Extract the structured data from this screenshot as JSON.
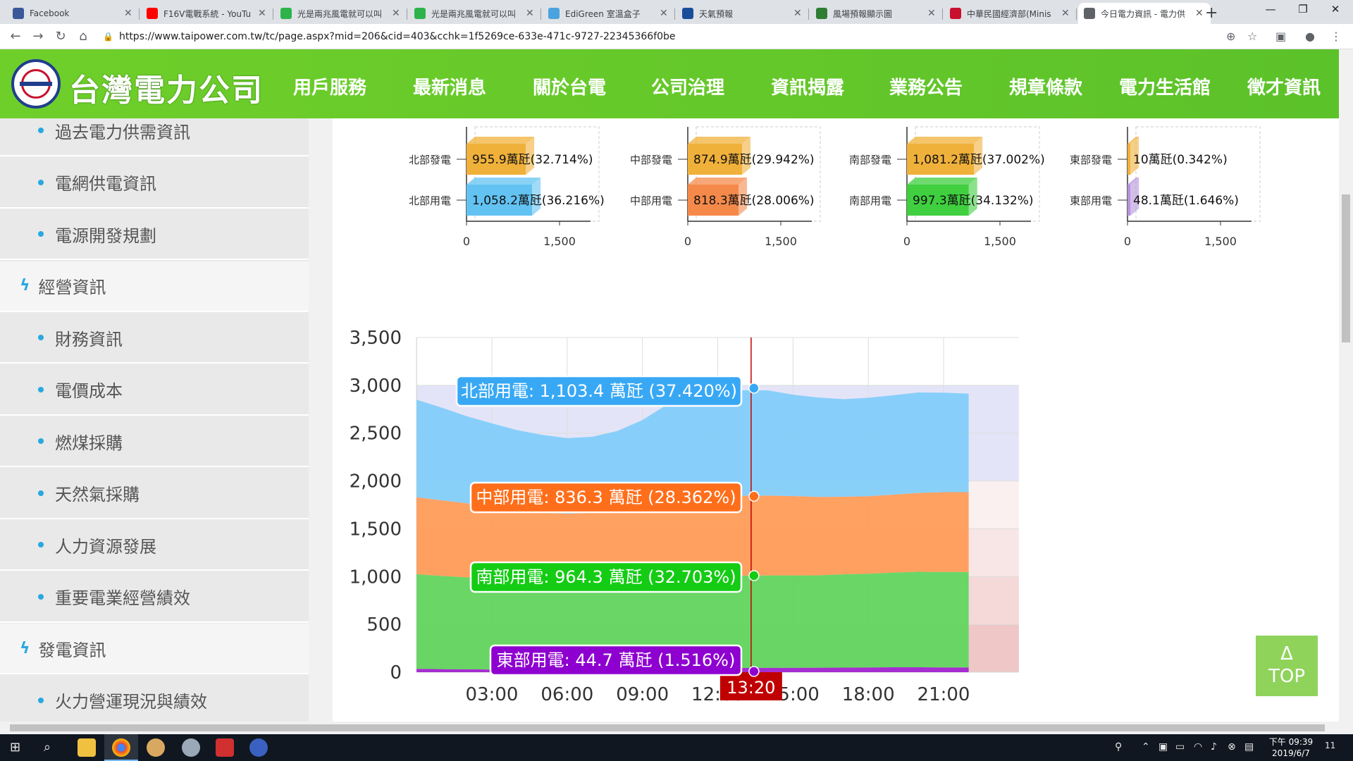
{
  "browser": {
    "tabs": [
      {
        "title": "Facebook",
        "color": "#3b5998"
      },
      {
        "title": "F16V電戰系統 - YouTu",
        "color": "#ff0000"
      },
      {
        "title": "光是兩兆風電就可以叫",
        "color": "#2db34a"
      },
      {
        "title": "光是兩兆風電就可以叫",
        "color": "#2db34a"
      },
      {
        "title": "EdiGreen 室溫盒子",
        "color": "#4aa3df"
      },
      {
        "title": "天氣預報",
        "color": "#1a4e9a"
      },
      {
        "title": "風場預報顯示圖",
        "color": "#2e7d32"
      },
      {
        "title": "中華民國經濟部(Minis",
        "color": "#c8102e"
      },
      {
        "title": "今日電力資訊 - 電力供",
        "color": "#5f6368"
      }
    ],
    "url": "https://www.taipower.com.tw/tc/page.aspx?mid=206&cid=403&cchk=1f5269ce-633e-471c-9727-22345366f0be"
  },
  "site": {
    "brand": "台灣電力公司",
    "nav": [
      "用戶服務",
      "最新消息",
      "關於台電",
      "公司治理",
      "資訊揭露",
      "業務公告",
      "規章條款",
      "電力生活館",
      "徵才資訊"
    ],
    "active_nav": "資訊揭露",
    "header_color": "#5cc22a"
  },
  "sidebar": {
    "items": [
      {
        "label": "過去電力供需資訊",
        "type": "sub"
      },
      {
        "label": "電網供電資訊",
        "type": "sub"
      },
      {
        "label": "電源開發規劃",
        "type": "sub"
      },
      {
        "label": "經營資訊",
        "type": "cat"
      },
      {
        "label": "財務資訊",
        "type": "sub"
      },
      {
        "label": "電價成本",
        "type": "sub"
      },
      {
        "label": "燃煤採購",
        "type": "sub"
      },
      {
        "label": "天然氣採購",
        "type": "sub"
      },
      {
        "label": "人力資源發展",
        "type": "sub"
      },
      {
        "label": "重要電業經營績效",
        "type": "sub"
      },
      {
        "label": "發電資訊",
        "type": "cat"
      },
      {
        "label": "火力營運現況與績效",
        "type": "sub"
      }
    ]
  },
  "chart_data": [
    {
      "type": "bar",
      "orientation": "horizontal",
      "groups": [
        {
          "rows": [
            {
              "label": "北部發電",
              "value": 955.9,
              "unit": "萬瓩",
              "pct": "32.714%",
              "color": "#f0b13a"
            },
            {
              "label": "北部用電",
              "value": 1058.2,
              "unit": "萬瓩",
              "pct": "36.216%",
              "color": "#62c3f2"
            }
          ]
        },
        {
          "rows": [
            {
              "label": "中部發電",
              "value": 874.9,
              "unit": "萬瓩",
              "pct": "29.942%",
              "color": "#f0b13a"
            },
            {
              "label": "中部用電",
              "value": 818.3,
              "unit": "萬瓩",
              "pct": "28.006%",
              "color": "#f5894a"
            }
          ]
        },
        {
          "rows": [
            {
              "label": "南部發電",
              "value": 1081.2,
              "unit": "萬瓩",
              "pct": "37.002%",
              "color": "#f0b13a"
            },
            {
              "label": "南部用電",
              "value": 997.3,
              "unit": "萬瓩",
              "pct": "34.132%",
              "color": "#3fcf3f"
            }
          ]
        },
        {
          "rows": [
            {
              "label": "東部發電",
              "value": 10,
              "unit": "萬瓩",
              "pct": "0.342%",
              "color": "#f0b13a"
            },
            {
              "label": "東部用電",
              "value": 48.1,
              "unit": "萬瓩",
              "pct": "1.646%",
              "color": "#b592d9"
            }
          ]
        }
      ],
      "xticks": [
        "0",
        "1,500"
      ],
      "xlim": [
        0,
        2000
      ],
      "value_labels": [
        "955.9",
        "1,058.2",
        "874.9",
        "818.3",
        "1,081.2",
        "997.3",
        "10",
        "48.1"
      ]
    },
    {
      "type": "area",
      "stacked": true,
      "ylim": [
        0,
        3500
      ],
      "yticks": [
        "0",
        "500",
        "1,000",
        "1,500",
        "2,000",
        "2,500",
        "3,000",
        "3,500"
      ],
      "xticks": [
        "03:00",
        "06:00",
        "09:00",
        "12:00",
        "15:00",
        "18:00",
        "21:00"
      ],
      "x_hours": [
        0,
        1,
        2,
        3,
        4,
        5,
        6,
        7,
        8,
        9,
        10,
        11,
        12,
        13,
        14,
        15,
        16,
        17,
        18,
        19,
        20,
        21,
        22
      ],
      "capacity": [
        2970,
        2970,
        2970,
        2970,
        2970,
        2970,
        2970,
        2970,
        2970,
        2970,
        2970,
        2970,
        2970,
        2970,
        2970,
        2970,
        2970,
        2970,
        2970,
        2970,
        2970,
        2970,
        2970
      ],
      "series": [
        {
          "name": "東部用電",
          "color": "#a020d0",
          "values": [
            35,
            32,
            30,
            28,
            27,
            27,
            28,
            32,
            36,
            40,
            42,
            44,
            44,
            45,
            46,
            46,
            47,
            48,
            50,
            52,
            52,
            50,
            50
          ]
        },
        {
          "name": "南部用電",
          "color": "#5cd65c",
          "values": [
            990,
            975,
            962,
            950,
            940,
            935,
            940,
            950,
            962,
            972,
            980,
            965,
            958,
            964,
            966,
            966,
            966,
            975,
            980,
            990,
            998,
            998,
            998
          ]
        },
        {
          "name": "中部用電",
          "color": "#ff9a55",
          "values": [
            805,
            790,
            775,
            755,
            725,
            705,
            690,
            685,
            685,
            700,
            760,
            815,
            825,
            836,
            835,
            830,
            820,
            812,
            810,
            815,
            825,
            835,
            835
          ]
        },
        {
          "name": "北部用電",
          "color": "#7fcdfa",
          "values": [
            1020,
            970,
            910,
            870,
            840,
            815,
            790,
            795,
            840,
            925,
            1020,
            1080,
            1100,
            1103,
            1100,
            1060,
            1040,
            1020,
            1030,
            1040,
            1050,
            1040,
            1030
          ]
        }
      ],
      "cursor": {
        "time": "13:20",
        "x_hour": 13.33,
        "color": "#c00000"
      },
      "tooltips": [
        {
          "text": "北部用電: 1,103.4 萬瓩 (37.420%)",
          "color": "#38a8f5"
        },
        {
          "text": "中部用電: 836.3 萬瓩 (28.362%)",
          "color": "#ff6e1a"
        },
        {
          "text": "南部用電: 964.3 萬瓩 (32.703%)",
          "color": "#14cc14"
        },
        {
          "text": "東部用電: 44.7 萬瓩 (1.516%)",
          "color": "#8e00d0"
        }
      ],
      "band_colors": [
        "#efc7c7",
        "#f5d8d8",
        "#f8e6e6",
        "#fbf0f0"
      ]
    }
  ],
  "top_button": {
    "arrow": "Δ",
    "label": "TOP"
  },
  "taskbar": {
    "time": "下午 09:39",
    "date": "2019/6/7",
    "notif": "11"
  }
}
